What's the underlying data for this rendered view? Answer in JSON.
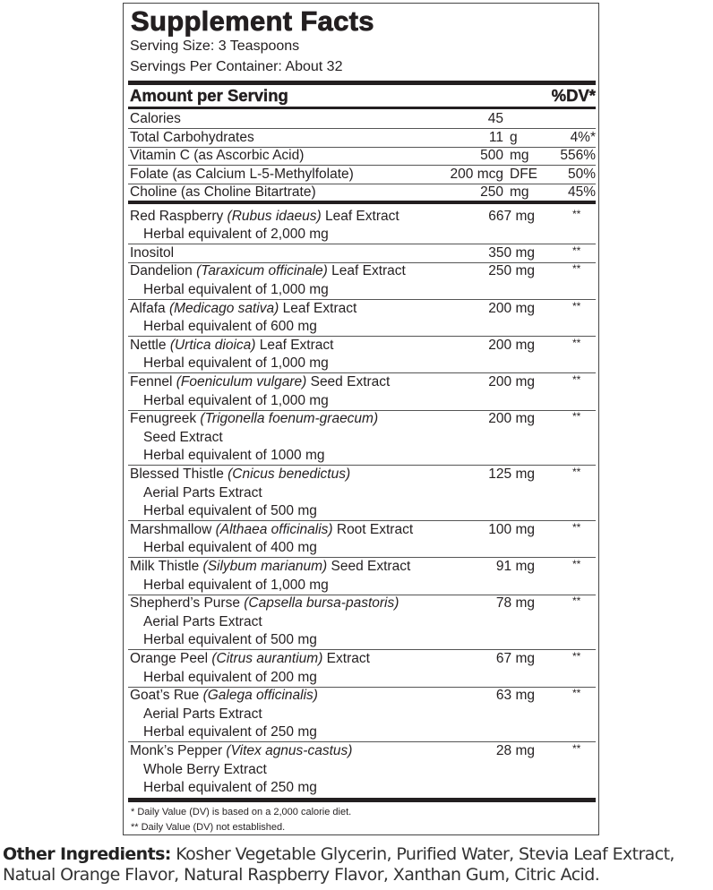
{
  "title": "Supplement Facts",
  "serving_size": "Serving Size: 3 Teaspoons",
  "servings_per_container": "Servings Per Container: About 32",
  "header": {
    "amount": "Amount per Serving",
    "dv": "%DV*"
  },
  "nutrients": [
    {
      "name": "Calories",
      "amount": "45",
      "unit": "",
      "dv": ""
    },
    {
      "name": "Total Carbohydrates",
      "amount": "11",
      "unit": "g",
      "dv": "4%*"
    },
    {
      "name": "Vitamin C (as Ascorbic Acid)",
      "amount": "500",
      "unit": "mg",
      "dv": "556%"
    },
    {
      "name": "Folate (as Calcium L-5-Methylfolate)",
      "amount": "200 mcg",
      "unit": "DFE",
      "dv": "50%"
    },
    {
      "name": "Choline (as Choline Bitartrate)",
      "amount": "250",
      "unit": "mg",
      "dv": "45%"
    }
  ],
  "ingredients": [
    {
      "name": "Red Raspberry ",
      "latin": "(Rubus idaeus)",
      "suffix": " Leaf Extract",
      "sub": [
        "Herbal equivalent of 2,000 mg"
      ],
      "amount": "667 mg",
      "dv": "**"
    },
    {
      "name": "Inositol",
      "latin": "",
      "suffix": "",
      "sub": [],
      "amount": "350 mg",
      "dv": "**"
    },
    {
      "name": "Dandelion ",
      "latin": "(Taraxicum officinale)",
      "suffix": " Leaf Extract",
      "sub": [
        "Herbal equivalent of 1,000 mg"
      ],
      "amount": "250 mg",
      "dv": "**"
    },
    {
      "name": "Alfafa ",
      "latin": "(Medicago sativa)",
      "suffix": " Leaf Extract",
      "sub": [
        "Herbal equivalent of 600 mg"
      ],
      "amount": "200 mg",
      "dv": "**"
    },
    {
      "name": "Nettle ",
      "latin": "(Urtica dioica)",
      "suffix": " Leaf Extract",
      "sub": [
        "Herbal equivalent of 1,000 mg"
      ],
      "amount": "200 mg",
      "dv": "**"
    },
    {
      "name": "Fennel ",
      "latin": "(Foeniculum vulgare)",
      "suffix": " Seed Extract",
      "sub": [
        "Herbal equivalent of 1,000 mg"
      ],
      "amount": "200 mg",
      "dv": "**"
    },
    {
      "name": "Fenugreek ",
      "latin": "(Trigonella foenum-graecum)",
      "suffix": "",
      "sub": [
        "Seed Extract",
        "Herbal equivalent of 1000 mg"
      ],
      "amount": "200 mg",
      "dv": "**"
    },
    {
      "name": "Blessed Thistle ",
      "latin": "(Cnicus benedictus)",
      "suffix": "",
      "sub": [
        "Aerial Parts Extract",
        "Herbal equivalent of 500 mg"
      ],
      "amount": "125 mg",
      "dv": "**"
    },
    {
      "name": "Marshmallow ",
      "latin": "(Althaea officinalis)",
      "suffix": " Root Extract",
      "sub": [
        "Herbal equivalent of 400 mg"
      ],
      "amount": "100 mg",
      "dv": "**"
    },
    {
      "name": "Milk Thistle ",
      "latin": "(Silybum marianum)",
      "suffix": " Seed Extract",
      "sub": [
        "Herbal equivalent of 1,000 mg"
      ],
      "amount": "91 mg",
      "dv": "**"
    },
    {
      "name": "Shepherd’s Purse ",
      "latin": "(Capsella bursa-pastoris)",
      "suffix": "",
      "sub": [
        "Aerial Parts Extract",
        "Herbal equivalent of 500 mg"
      ],
      "amount": "78 mg",
      "dv": "**"
    },
    {
      "name": "Orange Peel ",
      "latin": "(Citrus aurantium)",
      "suffix": " Extract",
      "sub": [
        "Herbal equivalent of 200 mg"
      ],
      "amount": "67 mg",
      "dv": "**"
    },
    {
      "name": "Goat’s Rue ",
      "latin": "(Galega officinalis)",
      "suffix": "",
      "sub": [
        "Aerial Parts Extract",
        "Herbal equivalent of 250 mg"
      ],
      "amount": "63 mg",
      "dv": "**"
    },
    {
      "name": "Monk’s Pepper ",
      "latin": "(Vitex agnus-castus)",
      "suffix": "",
      "sub": [
        "Whole Berry Extract",
        "Herbal equivalent of 250 mg"
      ],
      "amount": "28 mg",
      "dv": "**"
    }
  ],
  "footnotes": [
    "*  Daily Value (DV) is based on a 2,000 calorie diet.",
    "** Daily Value (DV) not established."
  ],
  "other_ingredients": {
    "label": "Other Ingredients:",
    "text": " Kosher Vegetable Glycerin, Purified Water, Stevia Leaf Extract, Natual Orange Flavor, Natural Raspberry Flavor, Xanthan Gum, Citric Acid."
  }
}
